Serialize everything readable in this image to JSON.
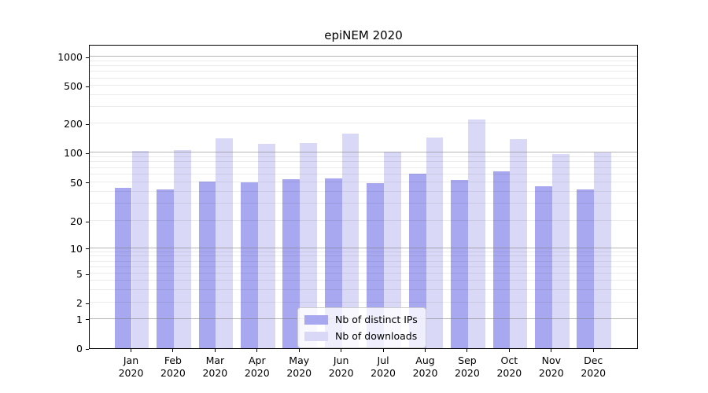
{
  "title": "epiNEM 2020",
  "colors": {
    "ips_bar": "#a8a8f0",
    "downloads_bar": "#d9d9f7",
    "axis": "#000000",
    "grid_major": "#b0b0b0",
    "grid_minor": "#e8e8e8",
    "legend_border": "#cccccc"
  },
  "y_axis": {
    "tick_values": [
      0,
      1,
      2,
      5,
      10,
      20,
      50,
      100,
      200,
      500,
      1000
    ]
  },
  "x_axis": {
    "months": [
      "Jan",
      "Feb",
      "Mar",
      "Apr",
      "May",
      "Jun",
      "Jul",
      "Aug",
      "Sep",
      "Oct",
      "Nov",
      "Dec"
    ],
    "year": "2020"
  },
  "legend": {
    "entries": [
      {
        "label": "Nb of distinct IPs",
        "color_key": "ips_bar"
      },
      {
        "label": "Nb of downloads",
        "color_key": "downloads_bar"
      }
    ]
  },
  "chart_data": {
    "type": "bar",
    "title": "epiNEM 2020",
    "categories": [
      "Jan 2020",
      "Feb 2020",
      "Mar 2020",
      "Apr 2020",
      "May 2020",
      "Jun 2020",
      "Jul 2020",
      "Aug 2020",
      "Sep 2020",
      "Oct 2020",
      "Nov 2020",
      "Dec 2020"
    ],
    "series": [
      {
        "name": "Nb of distinct IPs",
        "values": [
          44,
          42,
          51,
          50,
          54,
          55,
          49,
          61,
          53,
          65,
          45,
          42
        ]
      },
      {
        "name": "Nb of downloads",
        "values": [
          104,
          106,
          140,
          123,
          127,
          159,
          102,
          144,
          222,
          139,
          97,
          100
        ]
      }
    ],
    "yscale": "symlog",
    "ylim": [
      0,
      1000
    ],
    "yticks": [
      0,
      1,
      2,
      5,
      10,
      20,
      50,
      100,
      200,
      500,
      1000
    ],
    "xlabel": "",
    "ylabel": "",
    "grid": true,
    "legend_position": "lower center"
  }
}
